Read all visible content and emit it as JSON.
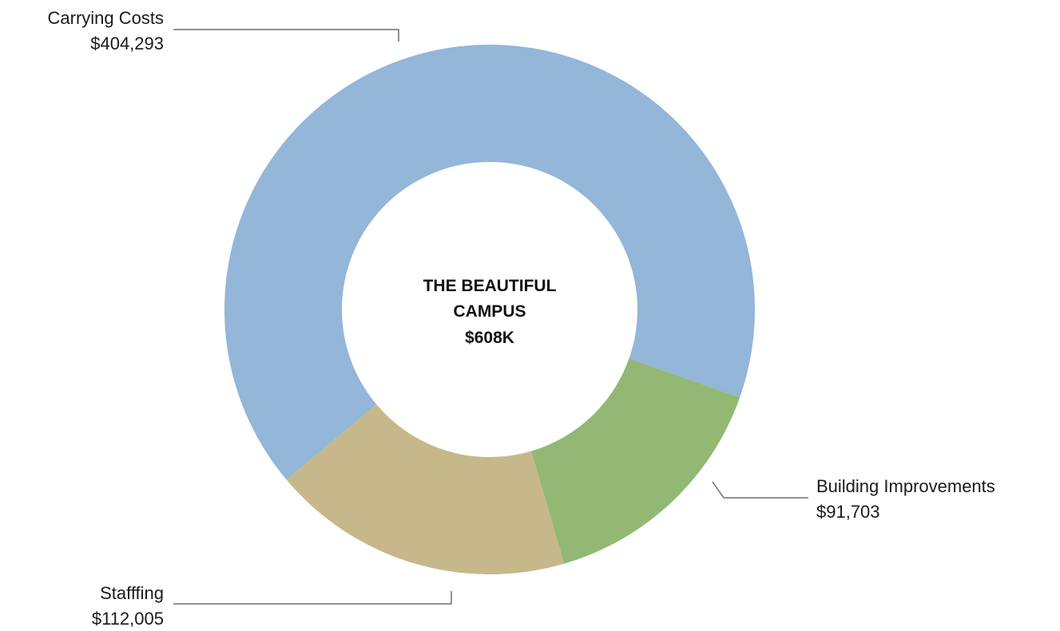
{
  "chart_data": {
    "type": "pie",
    "title": "",
    "center_label": [
      "THE BEAUTIFUL",
      "CAMPUS",
      "$608K"
    ],
    "slices": [
      {
        "label": "Carrying Costs",
        "value_label": "$404,293",
        "value": 404293,
        "color": "#93b6d9"
      },
      {
        "label": "Building Improvements",
        "value_label": "$91,703",
        "value": 91703,
        "color": "#92b874"
      },
      {
        "label": "Stafffing",
        "value_label": "$112,005",
        "value": 112005,
        "color": "#c6b88a"
      }
    ],
    "legend": "none"
  }
}
